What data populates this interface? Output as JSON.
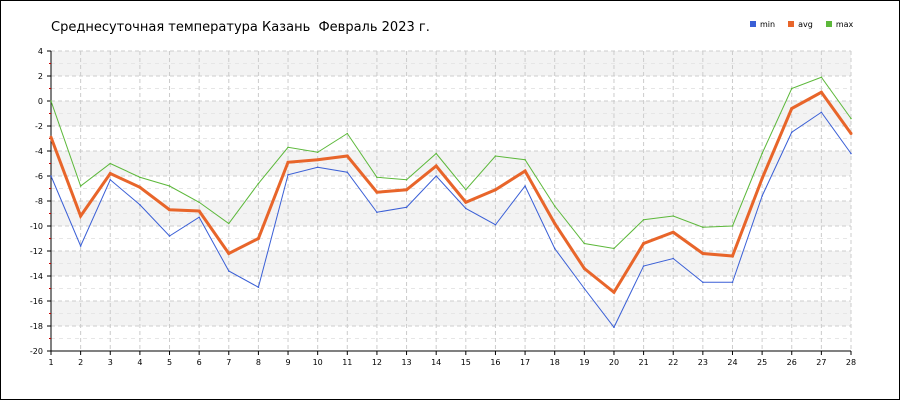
{
  "chart_data": {
    "type": "line",
    "title": "Среднесуточная температура Казань  Февраль 2023 г.",
    "xlabel": "",
    "ylabel": "",
    "x": [
      1,
      2,
      3,
      4,
      5,
      6,
      7,
      8,
      9,
      10,
      11,
      12,
      13,
      14,
      15,
      16,
      17,
      18,
      19,
      20,
      21,
      22,
      23,
      24,
      25,
      26,
      27,
      28
    ],
    "ylim": [
      -20,
      4
    ],
    "yticks": [
      4,
      2,
      0,
      -2,
      -4,
      -6,
      -8,
      -10,
      -12,
      -14,
      -16,
      -18,
      -20
    ],
    "grid": true,
    "legend_position": "top-right",
    "series": [
      {
        "name": "min",
        "color": "#3a5fd6",
        "values": [
          -6.0,
          -11.6,
          -6.3,
          -8.3,
          -10.8,
          -9.3,
          -13.6,
          -14.9,
          -5.9,
          -5.3,
          -5.7,
          -8.9,
          -8.5,
          -6.0,
          -8.6,
          -9.9,
          -6.8,
          -11.8,
          -15.0,
          -18.1,
          -13.2,
          -12.6,
          -14.5,
          -14.5,
          -7.6,
          -2.5,
          -0.9,
          -4.2
        ]
      },
      {
        "name": "avg",
        "color": "#e8652a",
        "values": [
          -2.9,
          -9.2,
          -5.8,
          -6.9,
          -8.7,
          -8.8,
          -12.2,
          -11.0,
          -4.9,
          -4.7,
          -4.4,
          -7.3,
          -7.1,
          -5.2,
          -8.1,
          -7.1,
          -5.6,
          -9.8,
          -13.4,
          -15.3,
          -11.4,
          -10.5,
          -12.2,
          -12.4,
          -6.2,
          -0.6,
          0.7,
          -2.6
        ]
      },
      {
        "name": "max",
        "color": "#5cb83a",
        "values": [
          0.0,
          -6.8,
          -5.0,
          -6.1,
          -6.8,
          -8.1,
          -9.8,
          -6.6,
          -3.7,
          -4.1,
          -2.6,
          -6.1,
          -6.3,
          -4.2,
          -7.1,
          -4.4,
          -4.7,
          -8.4,
          -11.4,
          -11.8,
          -9.5,
          -9.2,
          -10.1,
          -10.0,
          -4.2,
          1.0,
          1.9,
          -1.4
        ]
      }
    ]
  }
}
